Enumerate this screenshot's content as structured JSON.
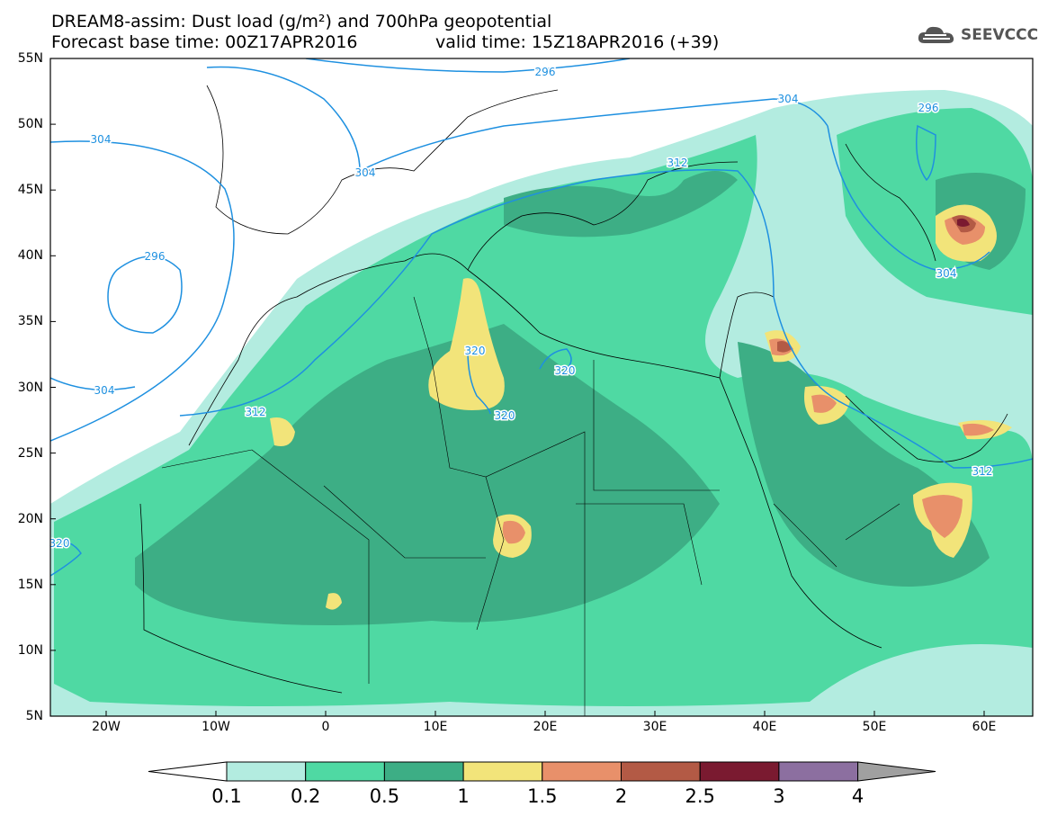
{
  "title": {
    "line1": "DREAM8-assim: Dust load (g/m²) and 700hPa geopotential",
    "line2_left": "Forecast base time: 00Z17APR2016",
    "line2_right": "valid time: 15Z18APR2016 (+39)"
  },
  "logo": {
    "text": "SEEVCCC"
  },
  "lat_labels": [
    "55N",
    "50N",
    "45N",
    "40N",
    "35N",
    "30N",
    "25N",
    "20N",
    "15N",
    "10N",
    "5N"
  ],
  "lon_labels": [
    "20W",
    "10W",
    "0",
    "10E",
    "20E",
    "30E",
    "40E",
    "50E",
    "60E"
  ],
  "contour_labels": {
    "c296_nw": "296",
    "c296_top": "296",
    "c296_ne": "296",
    "c304_w": "304",
    "c304_a": "304",
    "c304_n": "304",
    "c304_sw": "304",
    "c304_e": "304",
    "c312_a": "312",
    "c312_w": "312",
    "c312_e": "312",
    "c320_a": "320",
    "c320_b": "320",
    "c320_c": "320",
    "c320_w": "320"
  },
  "colorbar": {
    "labels": [
      "0.1",
      "0.2",
      "0.5",
      "1",
      "1.5",
      "2",
      "2.5",
      "3",
      "4"
    ],
    "colors": [
      "#b3ece0",
      "#4fd9a3",
      "#3dae85",
      "#f2e47a",
      "#e8906a",
      "#b35a45",
      "#7a1a30",
      "#8c6fa0",
      "#a0a0a0"
    ]
  },
  "fill_colors": {
    "c01": "#b3ece0",
    "c02": "#4fd9a3",
    "c05": "#3dae85",
    "c1": "#f2e47a",
    "c15": "#e8906a",
    "c2": "#b35a45",
    "c25": "#7a1a30"
  },
  "contour_color": "#1e90e0"
}
